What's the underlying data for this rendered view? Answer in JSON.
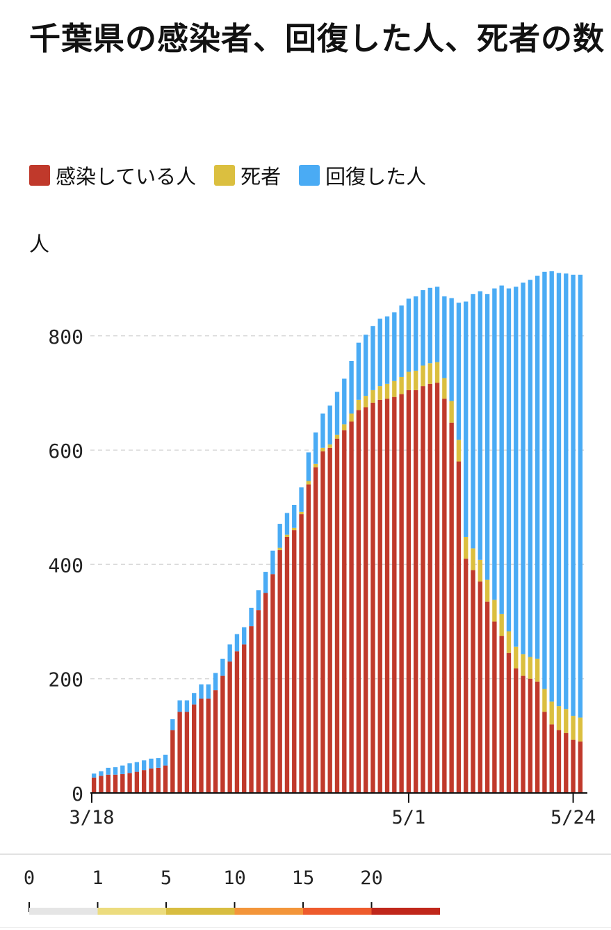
{
  "title": "千葉県の感染者、回復した人、死者の数",
  "legend": [
    {
      "label": "感染している人",
      "color": "#c0392b"
    },
    {
      "label": "死者",
      "color": "#dbbf3f"
    },
    {
      "label": "回復した人",
      "color": "#4aabf4"
    }
  ],
  "unit_label": "人",
  "chart_data": {
    "type": "bar",
    "stacked": true,
    "x_tick_labels": [
      {
        "index": 0,
        "label": "3/18"
      },
      {
        "index": 44,
        "label": "5/1"
      },
      {
        "index": 67,
        "label": "5/24"
      }
    ],
    "y_ticks": [
      0,
      200,
      400,
      600,
      800
    ],
    "ylim": [
      0,
      1000
    ],
    "grid": "horizontal dashed",
    "series": [
      {
        "name": "感染している人",
        "color": "#c0392b",
        "values": [
          27,
          30,
          32,
          32,
          33,
          35,
          37,
          40,
          43,
          44,
          48,
          110,
          142,
          142,
          155,
          165,
          165,
          180,
          205,
          230,
          248,
          260,
          292,
          320,
          350,
          383,
          425,
          448,
          460,
          488,
          540,
          570,
          598,
          604,
          620,
          635,
          650,
          670,
          675,
          683,
          688,
          690,
          693,
          698,
          705,
          705,
          712,
          716,
          718,
          690,
          648,
          580,
          410,
          390,
          370,
          335,
          300,
          275,
          245,
          218,
          205,
          200,
          195,
          142,
          120,
          110,
          105,
          93,
          90
        ]
      },
      {
        "name": "死者",
        "color": "#dbbf3f",
        "values": [
          0,
          0,
          0,
          0,
          0,
          0,
          0,
          0,
          0,
          0,
          0,
          0,
          0,
          0,
          0,
          0,
          0,
          0,
          0,
          0,
          0,
          0,
          0,
          0,
          0,
          0,
          4,
          4,
          4,
          4,
          6,
          6,
          6,
          6,
          7,
          10,
          14,
          18,
          20,
          22,
          24,
          26,
          28,
          30,
          32,
          34,
          36,
          36,
          36,
          36,
          38,
          38,
          38,
          38,
          38,
          38,
          38,
          38,
          38,
          38,
          38,
          38,
          40,
          40,
          40,
          42,
          42,
          42,
          42
        ]
      },
      {
        "name": "回復した人",
        "color": "#4aabf4",
        "values": [
          7,
          8,
          12,
          13,
          15,
          17,
          17,
          17,
          17,
          17,
          19,
          19,
          20,
          20,
          20,
          25,
          25,
          30,
          30,
          30,
          30,
          30,
          32,
          35,
          37,
          41,
          42,
          38,
          40,
          43,
          50,
          55,
          60,
          68,
          75,
          80,
          92,
          100,
          107,
          112,
          118,
          118,
          120,
          125,
          128,
          130,
          132,
          132,
          132,
          143,
          180,
          240,
          412,
          445,
          470,
          500,
          545,
          575,
          600,
          630,
          650,
          660,
          670,
          730,
          753,
          758,
          762,
          772,
          775
        ]
      }
    ]
  },
  "scale": {
    "ticks": [
      "0",
      "1",
      "5",
      "10",
      "15",
      "20"
    ],
    "colors": [
      "#e5e5e5",
      "#ecdc7e",
      "#d8bd40",
      "#f3953a",
      "#ee5b2c",
      "#c0271b"
    ]
  }
}
